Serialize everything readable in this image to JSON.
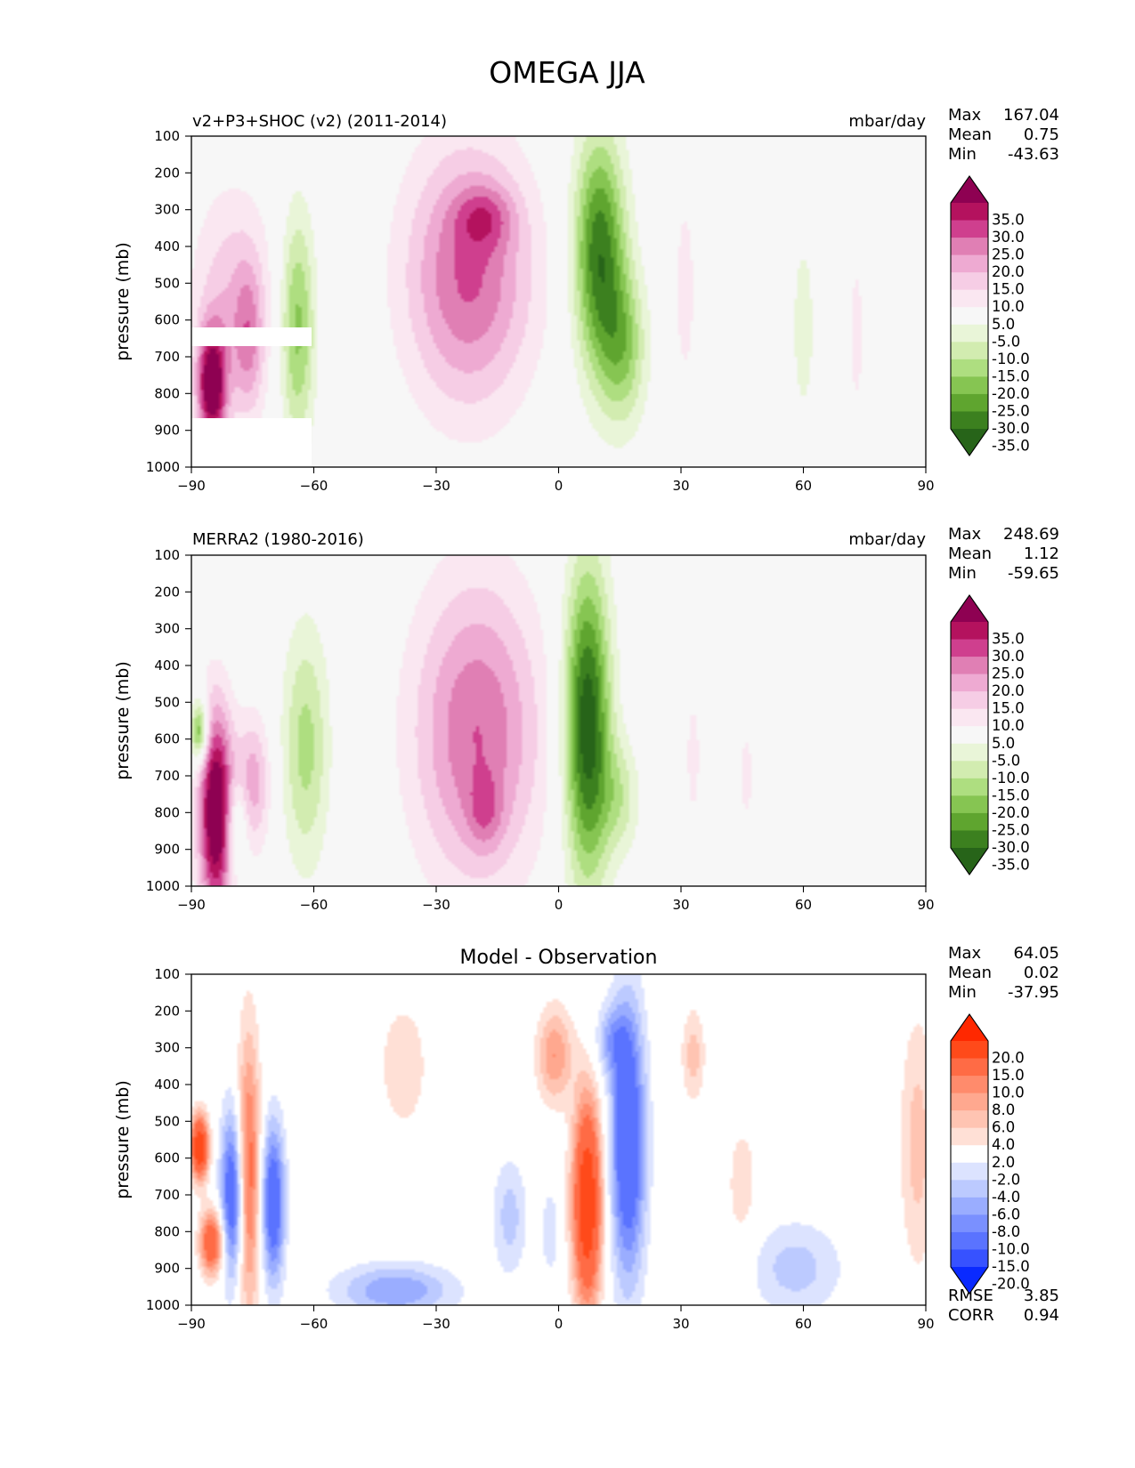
{
  "figure_title": "OMEGA JJA",
  "chart_data": [
    {
      "type": "heatmap",
      "title": "v2+P3+SHOC (v2) (2011-2014)",
      "units": "mbar/day",
      "xlabel": "",
      "ylabel": "pressure (mb)",
      "xlim": [
        -90,
        90
      ],
      "ylim": [
        1000,
        100
      ],
      "xticks": [
        "−90",
        "−60",
        "−30",
        "0",
        "30",
        "60",
        "90"
      ],
      "yticks": [
        "100",
        "200",
        "300",
        "400",
        "500",
        "600",
        "700",
        "800",
        "900",
        "1000"
      ],
      "stats": {
        "max_label": "Max",
        "max": "167.04",
        "mean_label": "Mean",
        "mean": "0.75",
        "min_label": "Min",
        "min": "-43.63"
      },
      "colorbar": {
        "levels": [
          "35.0",
          "30.0",
          "25.0",
          "20.0",
          "15.0",
          "10.0",
          "5.0",
          "-5.0",
          "-10.0",
          "-15.0",
          "-20.0",
          "-25.0",
          "-30.0",
          "-35.0"
        ],
        "colors": [
          "#8e0152",
          "#b4125e",
          "#cf3f8e",
          "#e07fb4",
          "#eeaad2",
          "#f6cde5",
          "#fae7f1",
          "#f7f7f7",
          "#e9f5d8",
          "#d2ecb0",
          "#aede80",
          "#86c552",
          "#5fa52f",
          "#3c801f",
          "#276419"
        ]
      },
      "features": [
        {
          "lat": -22,
          "p": 480,
          "sx": 11,
          "sy": 250,
          "amp": 26
        },
        {
          "lat": -18,
          "p": 320,
          "sx": 5,
          "sy": 60,
          "amp": 12
        },
        {
          "lat": 10,
          "p": 420,
          "sx": 4.5,
          "sy": 230,
          "amp": -34
        },
        {
          "lat": 16,
          "p": 680,
          "sx": 4,
          "sy": 150,
          "amp": -18
        },
        {
          "lat": -64,
          "p": 620,
          "sx": 3,
          "sy": 220,
          "amp": -22
        },
        {
          "lat": -80,
          "p": 560,
          "sx": 7,
          "sy": 220,
          "amp": 14
        },
        {
          "lat": -85,
          "p": 780,
          "sx": 2.5,
          "sy": 110,
          "amp": 40
        },
        {
          "lat": -76,
          "p": 650,
          "sx": 2.5,
          "sy": 140,
          "amp": 14
        },
        {
          "lat": 31,
          "p": 520,
          "sx": 2.2,
          "sy": 230,
          "amp": 7
        },
        {
          "lat": 60,
          "p": 620,
          "sx": 2.5,
          "sy": 230,
          "amp": -7
        },
        {
          "lat": 73,
          "p": 640,
          "sx": 1.5,
          "sy": 180,
          "amp": 7
        }
      ]
    },
    {
      "type": "heatmap",
      "title": "MERRA2 (1980-2016)",
      "units": "mbar/day",
      "xlabel": "",
      "ylabel": "pressure (mb)",
      "xlim": [
        -90,
        90
      ],
      "ylim": [
        1000,
        100
      ],
      "xticks": [
        "−90",
        "−60",
        "−30",
        "0",
        "30",
        "60",
        "90"
      ],
      "yticks": [
        "100",
        "200",
        "300",
        "400",
        "500",
        "600",
        "700",
        "800",
        "900",
        "1000"
      ],
      "stats": {
        "max_label": "Max",
        "max": "248.69",
        "mean_label": "Mean",
        "mean": "1.12",
        "min_label": "Min",
        "min": "-59.65"
      },
      "colorbar": {
        "levels": [
          "35.0",
          "30.0",
          "25.0",
          "20.0",
          "15.0",
          "10.0",
          "5.0",
          "-5.0",
          "-10.0",
          "-15.0",
          "-20.0",
          "-25.0",
          "-30.0",
          "-35.0"
        ],
        "colors": [
          "#8e0152",
          "#b4125e",
          "#cf3f8e",
          "#e07fb4",
          "#eeaad2",
          "#f6cde5",
          "#fae7f1",
          "#f7f7f7",
          "#e9f5d8",
          "#d2ecb0",
          "#aede80",
          "#86c552",
          "#5fa52f",
          "#3c801f",
          "#276419"
        ]
      },
      "features": [
        {
          "lat": -20,
          "p": 580,
          "sx": 11,
          "sy": 290,
          "amp": 25
        },
        {
          "lat": -18,
          "p": 800,
          "sx": 3,
          "sy": 70,
          "amp": 10
        },
        {
          "lat": 7,
          "p": 560,
          "sx": 4,
          "sy": 300,
          "amp": -40
        },
        {
          "lat": 15,
          "p": 760,
          "sx": 3.5,
          "sy": 110,
          "amp": -12
        },
        {
          "lat": -62,
          "p": 620,
          "sx": 4,
          "sy": 230,
          "amp": -17
        },
        {
          "lat": -84,
          "p": 800,
          "sx": 3,
          "sy": 200,
          "amp": 45
        },
        {
          "lat": -75,
          "p": 720,
          "sx": 3,
          "sy": 130,
          "amp": 18
        },
        {
          "lat": -79,
          "p": 830,
          "sx": 2,
          "sy": 90,
          "amp": -15
        },
        {
          "lat": -88,
          "p": 580,
          "sx": 1.5,
          "sy": 60,
          "amp": -30
        },
        {
          "lat": 33,
          "p": 650,
          "sx": 2,
          "sy": 200,
          "amp": 6
        },
        {
          "lat": 46,
          "p": 700,
          "sx": 2,
          "sy": 150,
          "amp": 6
        }
      ]
    },
    {
      "type": "heatmap",
      "title": "Model - Observation",
      "units": "",
      "xlabel": "",
      "ylabel": "pressure (mb)",
      "xlim": [
        -90,
        90
      ],
      "ylim": [
        1000,
        100
      ],
      "xticks": [
        "−90",
        "−60",
        "−30",
        "0",
        "30",
        "60",
        "90"
      ],
      "yticks": [
        "100",
        "200",
        "300",
        "400",
        "500",
        "600",
        "700",
        "800",
        "900",
        "1000"
      ],
      "stats": {
        "max_label": "Max",
        "max": "64.05",
        "mean_label": "Mean",
        "mean": "0.02",
        "min_label": "Min",
        "min": "-37.95"
      },
      "extra_stats": {
        "rmse_label": "RMSE",
        "rmse": "3.85",
        "corr_label": "CORR",
        "corr": "0.94"
      },
      "colorbar": {
        "levels": [
          "20.0",
          "15.0",
          "10.0",
          "8.0",
          "6.0",
          "4.0",
          "2.0",
          "-2.0",
          "-4.0",
          "-6.0",
          "-8.0",
          "-10.0",
          "-15.0",
          "-20.0"
        ],
        "colors": [
          "#ff2800",
          "#ff4a1a",
          "#ff6b45",
          "#ff8b6c",
          "#ffa88f",
          "#ffc4b2",
          "#ffe0d6",
          "#ffffff",
          "#dce3ff",
          "#bccaff",
          "#9aadff",
          "#7a90ff",
          "#5a73ff",
          "#3752ff",
          "#0a2aff"
        ]
      },
      "features": [
        {
          "lat": 7,
          "p": 720,
          "sx": 2.5,
          "sy": 200,
          "amp": 20
        },
        {
          "lat": 17,
          "p": 560,
          "sx": 3,
          "sy": 260,
          "amp": -15
        },
        {
          "lat": -1,
          "p": 320,
          "sx": 3,
          "sy": 90,
          "amp": 8
        },
        {
          "lat": 13,
          "p": 280,
          "sx": 3,
          "sy": 70,
          "amp": -6
        },
        {
          "lat": -80,
          "p": 700,
          "sx": 2,
          "sy": 160,
          "amp": -14
        },
        {
          "lat": -76,
          "p": 640,
          "sx": 2,
          "sy": 260,
          "amp": 12
        },
        {
          "lat": -70,
          "p": 720,
          "sx": 2,
          "sy": 150,
          "amp": -14
        },
        {
          "lat": -85,
          "p": 830,
          "sx": 2,
          "sy": 60,
          "amp": 15
        },
        {
          "lat": -88,
          "p": 570,
          "sx": 1.5,
          "sy": 60,
          "amp": 20
        },
        {
          "lat": -40,
          "p": 960,
          "sx": 10,
          "sy": 50,
          "amp": -8
        },
        {
          "lat": -38,
          "p": 350,
          "sx": 4,
          "sy": 120,
          "amp": 4
        },
        {
          "lat": 88,
          "p": 560,
          "sx": 3,
          "sy": 240,
          "amp": 5
        },
        {
          "lat": 58,
          "p": 900,
          "sx": 8,
          "sy": 90,
          "amp": -5
        },
        {
          "lat": 33,
          "p": 320,
          "sx": 2,
          "sy": 90,
          "amp": 5
        },
        {
          "lat": 45,
          "p": 680,
          "sx": 3,
          "sy": 150,
          "amp": 3
        },
        {
          "lat": -12,
          "p": 760,
          "sx": 3,
          "sy": 110,
          "amp": -5
        },
        {
          "lat": -2,
          "p": 800,
          "sx": 1.5,
          "sy": 80,
          "amp": -4
        }
      ]
    }
  ]
}
